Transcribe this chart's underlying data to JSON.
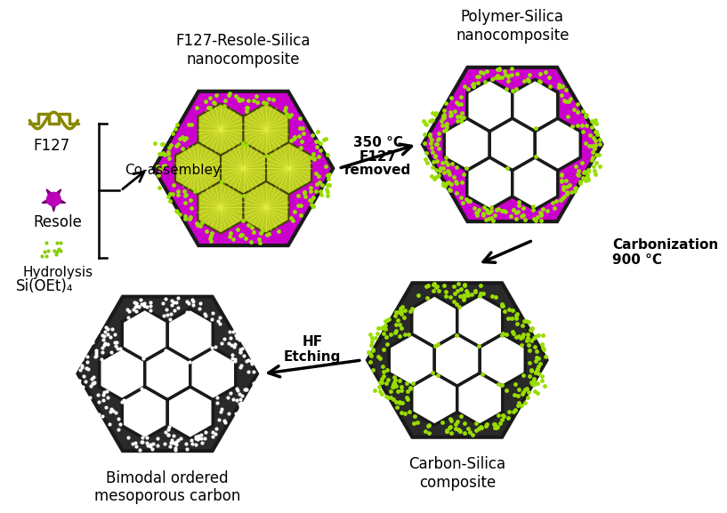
{
  "bg_color": "#ffffff",
  "magenta_color": "#CC00CC",
  "dark_color": "#2a2a2a",
  "outline_color": "#1a1a1a",
  "title_fontsize": 12,
  "arrow_fontsize": 11,
  "label_top_left": "F127-Resole-Silica\nnanocomposite",
  "label_top_right": "Polymer-Silica\nnanocomposite",
  "label_bot_left": "Bimodal ordered\nmesoporous carbon",
  "label_bot_right": "Carbon-Silica\ncomposite",
  "arrow_top": "350 °C\nF127\nremoved",
  "arrow_right": "Carbonization\n900 °C",
  "arrow_bot": "HF\nEtching",
  "text_coassembly": "Co-assembley",
  "text_hydrolysis": "Hydrolysis",
  "text_f127": "F127",
  "text_resole": "Resole",
  "text_sioet": "Si(OEt)₄"
}
